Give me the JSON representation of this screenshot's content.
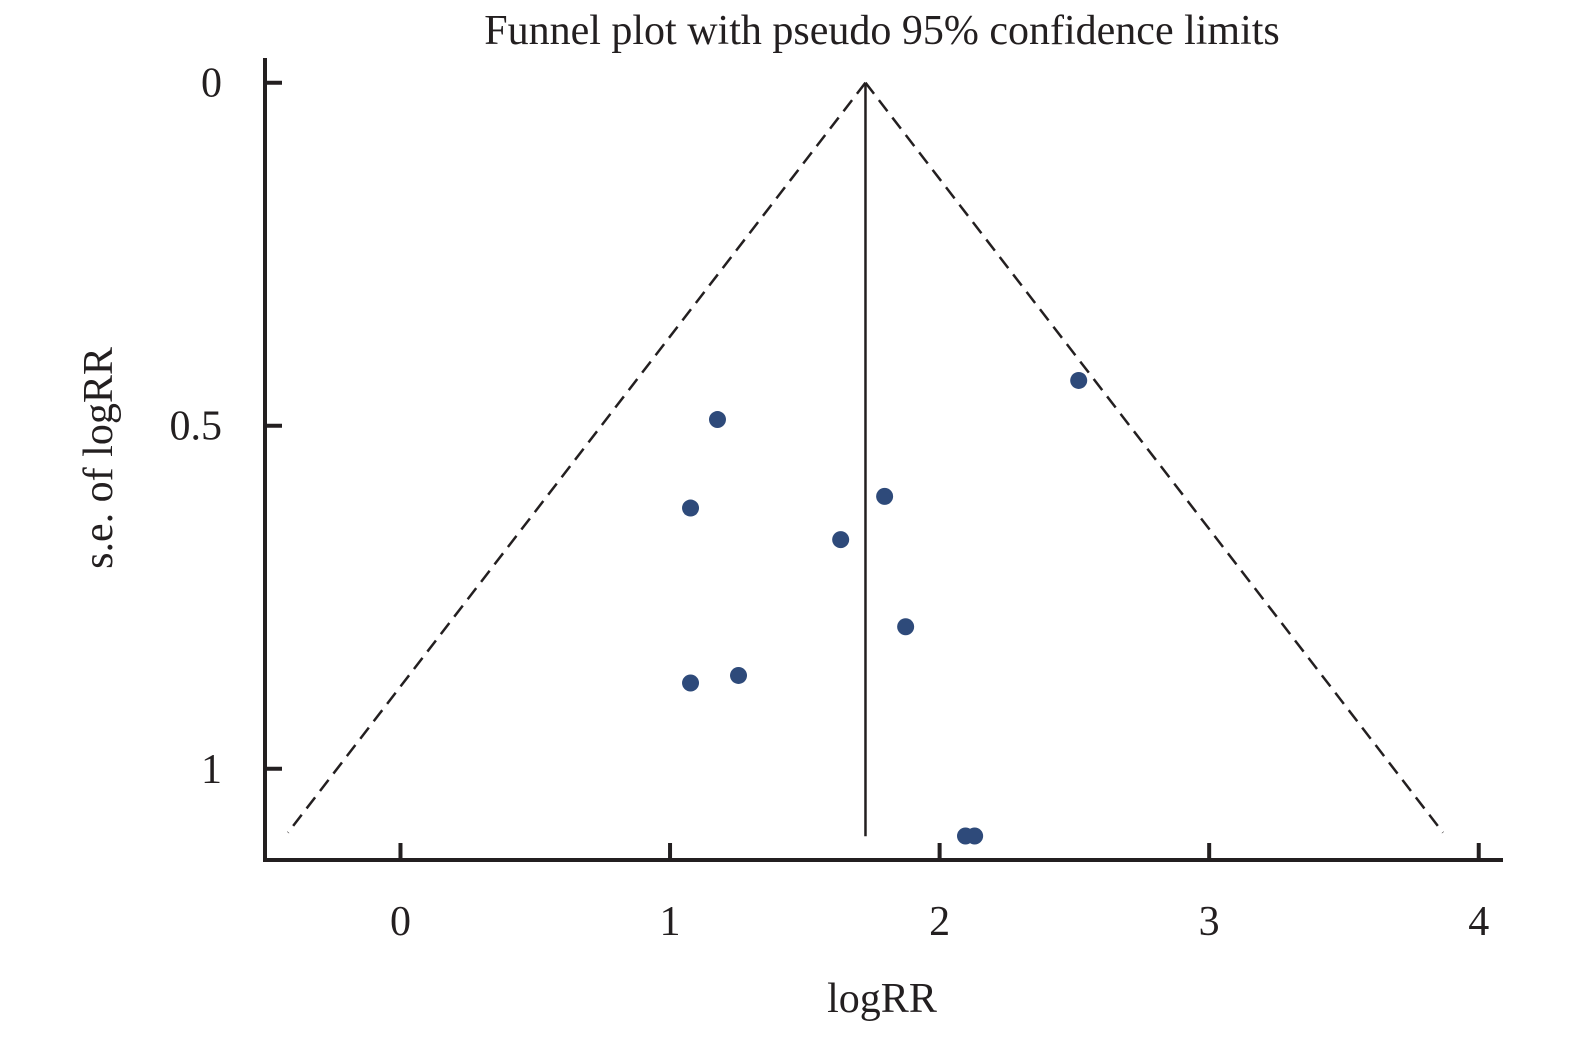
{
  "chart_data": {
    "type": "scatter",
    "title": "Funnel plot with pseudo 95% confidence limits",
    "xlabel": "logRR",
    "ylabel": "s.e. of logRR",
    "xlim": [
      -0.51,
      4.09
    ],
    "ylim": [
      1.133,
      -0.036
    ],
    "y_reversed": true,
    "xticks": [
      0,
      1,
      2,
      3,
      4
    ],
    "xtick_labels": [
      "0",
      "1",
      "2",
      "3",
      "4"
    ],
    "yticks": [
      0,
      0.5,
      1
    ],
    "ytick_labels": [
      "0",
      "0.5",
      "1"
    ],
    "grid": false,
    "pooled_estimate": 1.725,
    "funnel_max_se": 1.093,
    "confidence_multiplier": 1.96,
    "point_color": "#2e4a7a",
    "points": [
      {
        "x": 2.516,
        "y": 0.434
      },
      {
        "x": 1.176,
        "y": 0.491
      },
      {
        "x": 1.796,
        "y": 0.603
      },
      {
        "x": 1.076,
        "y": 0.62
      },
      {
        "x": 1.633,
        "y": 0.666
      },
      {
        "x": 1.874,
        "y": 0.793
      },
      {
        "x": 1.254,
        "y": 0.864
      },
      {
        "x": 1.076,
        "y": 0.875
      },
      {
        "x": 2.096,
        "y": 1.098
      },
      {
        "x": 2.13,
        "y": 1.098
      }
    ]
  }
}
